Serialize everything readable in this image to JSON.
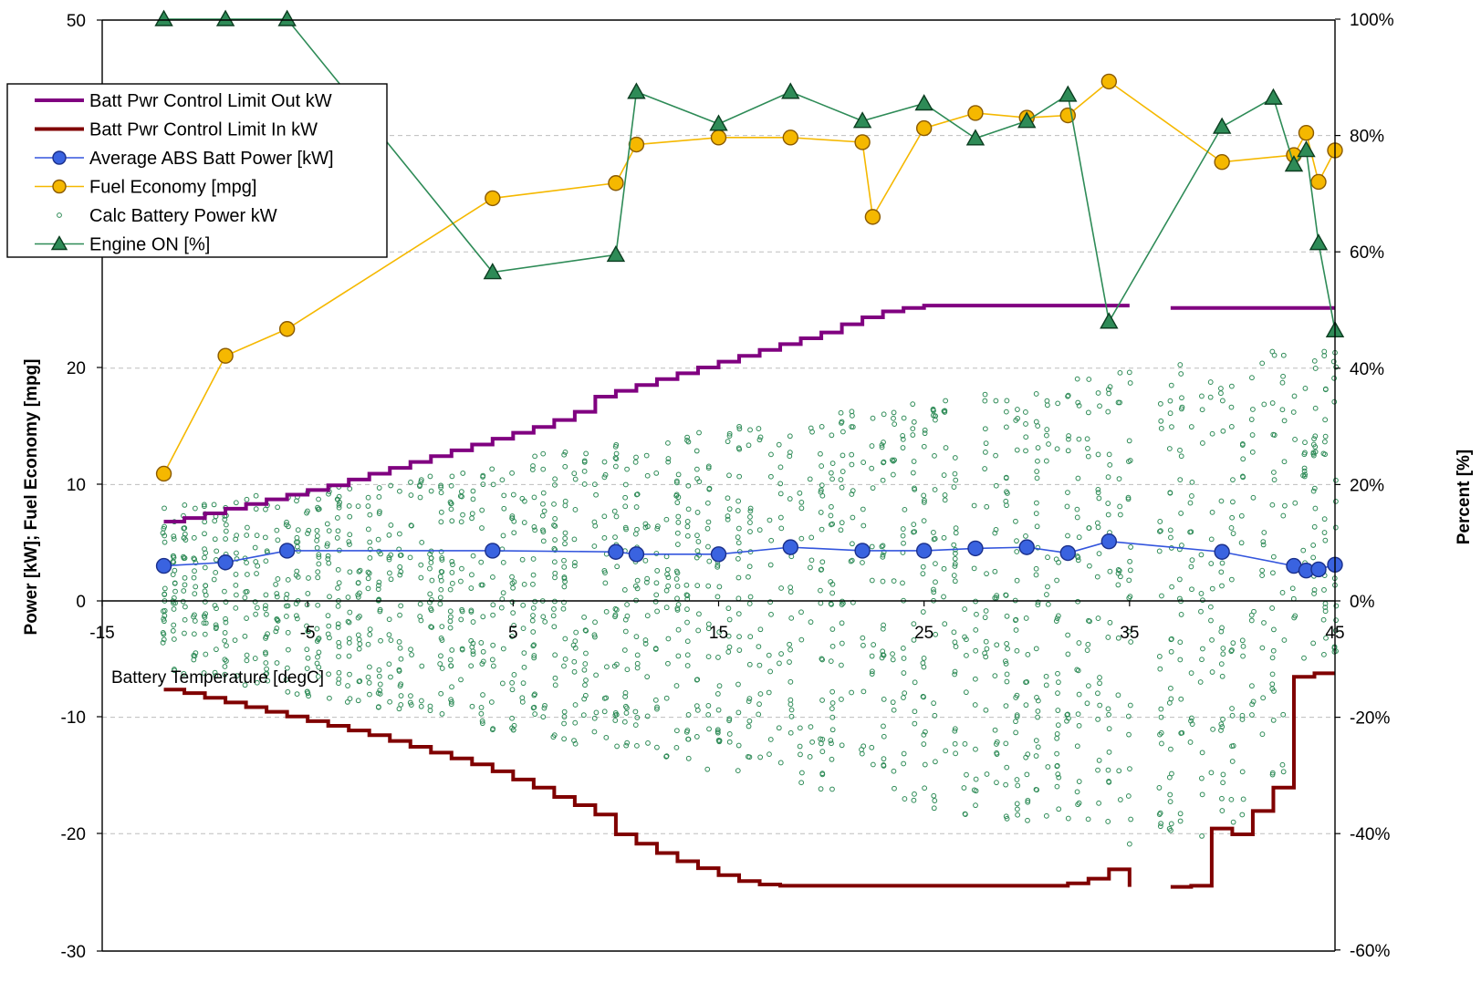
{
  "chart_data": {
    "type": "line",
    "title": "",
    "xlabel": "Battery Temperature [degC]",
    "ylabel_left": "Power [kW]; Fuel Economy [mpg]",
    "ylabel_right": "Percent [%]",
    "x_ticks": [
      "-15",
      "-5",
      "5",
      "15",
      "25",
      "35",
      "45"
    ],
    "y_left_ticks": [
      "-30",
      "-20",
      "-10",
      "0",
      "10",
      "20",
      "50"
    ],
    "y_right_ticks": [
      "-60%",
      "-40%",
      "-20%",
      "0%",
      "20%",
      "40%",
      "60%",
      "80%",
      "100%"
    ],
    "xlim": [
      -15,
      45
    ],
    "ylim_left": [
      -30,
      50
    ],
    "ylim_right": [
      -60,
      100
    ],
    "grid": "horizontal dashed",
    "legend_position": "top-left",
    "colors": {
      "limit_out": "#800080",
      "limit_in": "#800000",
      "avg_abs": "#3355dd",
      "fuel": "#f5b800",
      "calc": "#2e8b57",
      "engine": "#2e8b57"
    },
    "series": [
      {
        "name": "Batt Pwr Control Limit Out kW",
        "style": "step",
        "x": [
          -12,
          -11,
          -10,
          -9,
          -8,
          -7,
          -6,
          -5,
          -4,
          -3,
          -2,
          -1,
          0,
          1,
          2,
          3,
          4,
          5,
          6,
          7,
          8,
          9,
          10,
          11,
          12,
          13,
          14,
          15,
          16,
          17,
          18,
          19,
          20,
          21,
          22,
          23,
          24,
          25,
          26,
          27,
          28,
          29,
          30,
          31,
          32,
          33,
          34,
          35,
          37,
          38,
          39,
          40,
          41,
          42,
          43,
          44,
          45
        ],
        "y": [
          6.8,
          7.1,
          7.5,
          7.9,
          8.3,
          8.7,
          9.1,
          9.5,
          9.9,
          10.4,
          10.9,
          11.4,
          11.9,
          12.4,
          12.9,
          13.4,
          13.9,
          14.4,
          14.9,
          15.5,
          16.2,
          17.5,
          18.0,
          18.5,
          19.0,
          19.5,
          20.0,
          20.5,
          21.0,
          21.5,
          22.0,
          22.5,
          23.0,
          23.7,
          24.3,
          24.8,
          25.1,
          25.3,
          25.3,
          25.3,
          25.3,
          25.3,
          25.3,
          25.3,
          25.3,
          25.3,
          25.3,
          25.3,
          25.1,
          25.1,
          25.1,
          25.1,
          25.1,
          25.1,
          25.1,
          25.1,
          25.1
        ]
      },
      {
        "name": "Batt Pwr Control Limit In kW",
        "style": "step",
        "x": [
          -12,
          -11,
          -10,
          -9,
          -8,
          -7,
          -6,
          -5,
          -4,
          -3,
          -2,
          -1,
          0,
          1,
          2,
          3,
          4,
          5,
          6,
          7,
          8,
          9,
          10,
          11,
          12,
          13,
          14,
          15,
          16,
          17,
          18,
          19,
          20,
          21,
          22,
          23,
          24,
          25,
          26,
          27,
          28,
          29,
          30,
          31,
          32,
          33,
          34,
          35,
          37,
          38,
          39,
          40,
          41,
          42,
          43,
          44,
          45
        ],
        "y": [
          -7.6,
          -7.9,
          -8.3,
          -8.7,
          -9.1,
          -9.5,
          -9.9,
          -10.3,
          -10.7,
          -11.1,
          -11.5,
          -12.0,
          -12.5,
          -13.0,
          -13.5,
          -14.0,
          -14.6,
          -15.3,
          -16.0,
          -16.8,
          -17.5,
          -18.3,
          -20.0,
          -20.8,
          -21.6,
          -22.3,
          -22.9,
          -23.5,
          -24.0,
          -24.3,
          -24.4,
          -24.4,
          -24.4,
          -24.4,
          -24.4,
          -24.4,
          -24.4,
          -24.4,
          -24.4,
          -24.4,
          -24.4,
          -24.4,
          -24.4,
          -24.4,
          -24.2,
          -23.8,
          -23.0,
          -24.5,
          -24.5,
          -24.4,
          -19.5,
          -20.0,
          -18.0,
          -16.0,
          -6.5,
          -6.2,
          -6.2
        ]
      },
      {
        "name": "Average ABS Batt Power [kW]",
        "style": "line-marker",
        "marker": "circle",
        "x": [
          -12,
          -9,
          -6,
          4,
          10,
          11,
          15,
          18.5,
          22,
          25,
          27.5,
          30,
          32,
          34,
          39.5,
          43,
          43.6,
          44.2,
          45
        ],
        "y": [
          3.0,
          3.3,
          4.3,
          4.3,
          4.2,
          4.0,
          4.0,
          4.6,
          4.3,
          4.3,
          4.5,
          4.6,
          4.1,
          5.1,
          4.2,
          3.0,
          2.6,
          2.7,
          3.1
        ]
      },
      {
        "name": "Fuel Economy [mpg]",
        "style": "line-marker",
        "marker": "circle",
        "x": [
          -12,
          -9,
          -6,
          4,
          10,
          11,
          15,
          18.5,
          22,
          22.5,
          25,
          27.5,
          30,
          32,
          34,
          39.5,
          43,
          43.6,
          44.2,
          45
        ],
        "y": [
          10.9,
          21.0,
          23.3,
          34.5,
          35.8,
          39.1,
          39.7,
          39.7,
          39.3,
          32.9,
          40.5,
          41.8,
          41.4,
          41.6,
          44.5,
          37.6,
          38.2,
          40.1,
          35.9,
          38.6
        ]
      },
      {
        "name": "Calc Battery Power kW",
        "style": "scatter",
        "marker": "small-circle"
      },
      {
        "name": "Engine ON [%]",
        "axis": "right",
        "style": "line-marker",
        "marker": "triangle",
        "x": [
          -12,
          -9,
          -6,
          4,
          10,
          11,
          15,
          18.5,
          22,
          25,
          27.5,
          30,
          32,
          34,
          39.5,
          42,
          43,
          43.6,
          44.2,
          45
        ],
        "y": [
          100,
          100,
          100,
          56.5,
          59.5,
          87.5,
          82,
          87.5,
          82.5,
          85.5,
          79.5,
          82.5,
          87,
          48,
          81.5,
          86.5,
          75,
          77.5,
          61.5,
          46.5
        ]
      }
    ]
  }
}
